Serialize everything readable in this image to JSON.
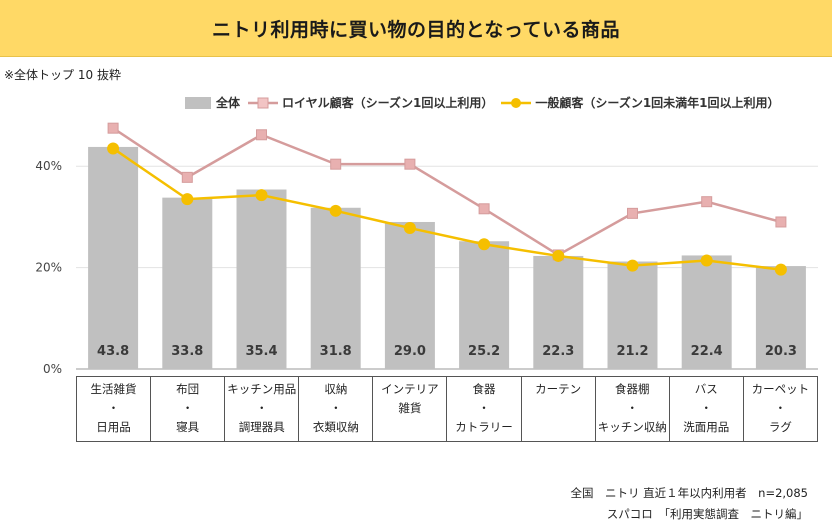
{
  "header": {
    "title": "ニトリ利用時に買い物の目的となっている商品"
  },
  "note": "※全体トップ 10 抜粋",
  "legend": {
    "all": "全体",
    "loyal": "ロイヤル顧客（シーズン1回以上利用）",
    "general": "一般顧客（シーズン1回未満年1回以上利用）"
  },
  "colors": {
    "bar": "#c0c0c0",
    "loyal": "#d59c9c",
    "loyal_marker": "#e8b0b0",
    "general": "#f5bf00",
    "title_bg": "#ffd966"
  },
  "chart_data": {
    "type": "bar",
    "categories": [
      [
        "生活雑貨",
        "・",
        "日用品"
      ],
      [
        "布団",
        "・",
        "寝具"
      ],
      [
        "キッチン用品",
        "・",
        "調理器具"
      ],
      [
        "収納",
        "・",
        "衣類収納"
      ],
      [
        "インテリア",
        "雑貨"
      ],
      [
        "食器",
        "・",
        "カトラリー"
      ],
      [
        "カーテン"
      ],
      [
        "食器棚",
        "・",
        "キッチン収納"
      ],
      [
        "バス",
        "・",
        "洗面用品"
      ],
      [
        "カーペット",
        "・",
        "ラグ"
      ]
    ],
    "series": [
      {
        "name": "全体",
        "kind": "bar",
        "values": [
          43.8,
          33.8,
          35.4,
          31.8,
          29.0,
          25.2,
          22.3,
          21.2,
          22.4,
          20.3
        ]
      },
      {
        "name": "ロイヤル顧客（シーズン1回以上利用）",
        "kind": "line",
        "values": [
          47.5,
          37.8,
          46.2,
          40.4,
          40.4,
          31.6,
          22.5,
          30.7,
          33.0,
          29.0
        ]
      },
      {
        "name": "一般顧客（シーズン1回未満年1回以上利用）",
        "kind": "line",
        "values": [
          43.5,
          33.5,
          34.3,
          31.2,
          27.8,
          24.6,
          22.3,
          20.4,
          21.4,
          19.6
        ]
      }
    ],
    "bar_labels": [
      "43.8",
      "33.8",
      "35.4",
      "31.8",
      "29.0",
      "25.2",
      "22.3",
      "21.2",
      "22.4",
      "20.3"
    ],
    "y_ticks": [
      "0%",
      "20%",
      "40%"
    ],
    "ylim": [
      0,
      50
    ],
    "title": "ニトリ利用時に買い物の目的となっている商品",
    "xlabel": "",
    "ylabel": ""
  },
  "footer": {
    "line1": "全国　ニトリ 直近１年以内利用者　n=2,085",
    "line2": "スパコロ　「利用実態調査　ニトリ編」"
  }
}
